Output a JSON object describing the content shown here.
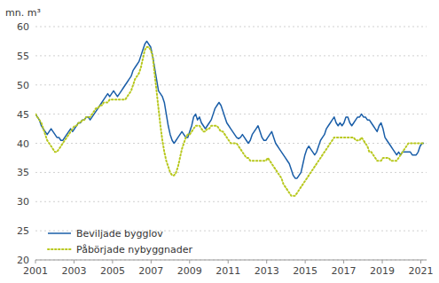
{
  "chart_data": {
    "type": "line",
    "ylabel": "mn. m³",
    "xlim": [
      2001.0,
      2021.3
    ],
    "ylim": [
      20,
      60
    ],
    "xticks": [
      2001,
      2003,
      2005,
      2007,
      2009,
      2011,
      2013,
      2015,
      2017,
      2019,
      2021
    ],
    "yticks": [
      20,
      25,
      30,
      35,
      40,
      45,
      50,
      55,
      60
    ],
    "grid": true,
    "legend": "lower left",
    "x": [
      2001,
      2001.1013,
      2001.2027,
      2001.304,
      2001.4054,
      2001.5067,
      2001.608,
      2001.7094,
      2001.8107,
      2001.9121,
      2002.0134,
      2002.1147,
      2002.2161,
      2002.3174,
      2002.4188,
      2002.5201,
      2002.6214,
      2002.7228,
      2002.8241,
      2002.9255,
      2003.0268,
      2003.1281,
      2003.2295,
      2003.3308,
      2003.4322,
      2003.5335,
      2003.6348,
      2003.7362,
      2003.8375,
      2003.9389,
      2004.0402,
      2004.1415,
      2004.2429,
      2004.3442,
      2004.4456,
      2004.5469,
      2004.6482,
      2004.7496,
      2004.8509,
      2004.9523,
      2005.0536,
      2005.1549,
      2005.2563,
      2005.3576,
      2005.459,
      2005.5603,
      2005.6616,
      2005.763,
      2005.8643,
      2005.9657,
      2006.067,
      2006.1683,
      2006.2697,
      2006.371,
      2006.4724,
      2006.5737,
      2006.675,
      2006.7764,
      2006.8777,
      2006.9791,
      2007.0804,
      2007.1817,
      2007.2831,
      2007.3844,
      2007.4858,
      2007.5871,
      2007.6884,
      2007.7898,
      2007.8911,
      2007.9925,
      2008.0938,
      2008.1951,
      2008.2965,
      2008.3978,
      2008.4992,
      2008.6005,
      2008.7018,
      2008.8032,
      2008.9045,
      2009.0059,
      2009.1072,
      2009.2085,
      2009.3099,
      2009.4112,
      2009.5126,
      2009.6139,
      2009.7152,
      2009.8166,
      2009.9179,
      2010.0193,
      2010.1206,
      2010.2219,
      2010.3233,
      2010.4246,
      2010.526,
      2010.6273,
      2010.7286,
      2010.83,
      2010.9313,
      2011.0327,
      2011.134,
      2011.2353,
      2011.3367,
      2011.438,
      2011.5394,
      2011.6407,
      2011.742,
      2011.8434,
      2011.9447,
      2012.0461,
      2012.1474,
      2012.2487,
      2012.3501,
      2012.4514,
      2012.5528,
      2012.6541,
      2012.7554,
      2012.8568,
      2012.9581,
      2013.0595,
      2013.1608,
      2013.2621,
      2013.3635,
      2013.4648,
      2013.5662,
      2013.6675,
      2013.7688,
      2013.8702,
      2013.9715,
      2014.0729,
      2014.1742,
      2014.2755,
      2014.3769,
      2014.4782,
      2014.5796,
      2014.6809,
      2014.7822,
      2014.8836,
      2014.9849,
      2015.0863,
      2015.1876,
      2015.2889,
      2015.3903,
      2015.4916,
      2015.593,
      2015.6943,
      2015.7956,
      2015.897,
      2015.9983,
      2016.0997,
      2016.201,
      2016.3023,
      2016.4037,
      2016.505,
      2016.6064,
      2016.7077,
      2016.809,
      2016.9104,
      2017.0117,
      2017.1131,
      2017.2144,
      2017.3157,
      2017.4171,
      2017.5184,
      2017.6198,
      2017.7211,
      2017.8224,
      2017.9238,
      2018.0251,
      2018.1265,
      2018.2278,
      2018.3291,
      2018.4305,
      2018.5318,
      2018.6332,
      2018.7345,
      2018.8358,
      2018.9372,
      2019.0385,
      2019.1399,
      2019.2412,
      2019.3425,
      2019.4439,
      2019.5452,
      2019.6466,
      2019.7479,
      2019.8492,
      2019.9506,
      2020.0519,
      2020.1533,
      2020.2546,
      2020.3559,
      2020.4573,
      2020.5586,
      2020.66,
      2020.7613,
      2020.8626,
      2020.964,
      2021.0653,
      2021.1667
    ],
    "series": [
      {
        "name": "Beviljade bygglov",
        "color": "#1a5ea8",
        "line_style": "solid",
        "values": [
          45.0,
          44.5,
          44.0,
          43.0,
          42.5,
          42.0,
          41.5,
          42.0,
          42.5,
          42.0,
          41.5,
          41.0,
          41.0,
          40.5,
          40.5,
          41.0,
          41.5,
          42.0,
          42.5,
          42.0,
          42.5,
          43.0,
          43.5,
          43.5,
          44.0,
          44.0,
          44.5,
          44.5,
          44.0,
          44.5,
          45.0,
          45.5,
          46.0,
          46.5,
          47.0,
          47.5,
          48.0,
          48.5,
          48.0,
          48.5,
          49.0,
          48.5,
          48.0,
          48.5,
          49.0,
          49.5,
          50.0,
          50.5,
          51.0,
          51.5,
          52.5,
          53.0,
          53.5,
          54.0,
          55.0,
          56.0,
          57.0,
          57.5,
          57.0,
          56.5,
          55.0,
          53.0,
          51.0,
          49.0,
          48.5,
          48.0,
          47.0,
          45.0,
          43.0,
          41.5,
          40.5,
          40.0,
          40.5,
          41.0,
          41.5,
          42.0,
          41.5,
          41.0,
          41.0,
          42.0,
          43.0,
          44.5,
          45.0,
          44.0,
          44.5,
          43.5,
          43.0,
          42.5,
          43.0,
          43.5,
          44.0,
          45.0,
          46.0,
          46.5,
          47.0,
          46.5,
          45.5,
          44.5,
          43.5,
          43.0,
          42.5,
          42.0,
          41.5,
          41.0,
          40.8,
          41.0,
          41.5,
          41.0,
          40.5,
          40.0,
          40.5,
          41.5,
          42.0,
          42.5,
          43.0,
          42.0,
          41.0,
          40.5,
          40.5,
          41.0,
          41.5,
          42.0,
          41.0,
          40.0,
          39.5,
          39.0,
          38.5,
          38.0,
          37.5,
          37.0,
          36.5,
          35.5,
          34.5,
          34.0,
          34.0,
          34.5,
          35.0,
          36.5,
          38.0,
          39.0,
          39.5,
          39.0,
          38.5,
          38.0,
          38.5,
          39.5,
          40.5,
          41.0,
          41.5,
          42.5,
          43.0,
          43.5,
          44.0,
          44.5,
          43.5,
          43.0,
          43.5,
          43.0,
          43.5,
          44.5,
          44.5,
          43.5,
          43.0,
          43.5,
          44.0,
          44.5,
          44.5,
          45.0,
          44.5,
          44.5,
          44.0,
          44.0,
          43.5,
          43.0,
          42.5,
          42.0,
          43.0,
          43.5,
          42.5,
          41.0,
          40.5,
          40.0,
          39.5,
          39.0,
          38.5,
          38.0,
          38.5,
          38.0,
          38.5,
          38.5,
          38.5,
          38.5,
          38.5,
          38.0,
          38.0,
          38.0,
          38.5,
          39.5,
          40.0,
          40.0
        ]
      },
      {
        "name": "Påbörjade nybyggnader",
        "color": "#b8c81e",
        "line_style": "dotted",
        "values": [
          45.0,
          44.5,
          44.0,
          43.5,
          42.5,
          41.5,
          40.5,
          40.0,
          39.5,
          39.0,
          38.5,
          38.5,
          39.0,
          39.5,
          40.0,
          40.5,
          41.0,
          41.5,
          42.0,
          42.5,
          43.0,
          43.0,
          43.5,
          43.5,
          44.0,
          44.0,
          44.5,
          44.5,
          44.5,
          45.0,
          45.5,
          46.0,
          46.0,
          46.5,
          46.5,
          47.0,
          47.0,
          47.0,
          47.5,
          47.5,
          47.5,
          47.5,
          47.5,
          47.5,
          47.5,
          47.5,
          47.5,
          48.0,
          48.5,
          49.0,
          50.0,
          51.0,
          51.5,
          52.0,
          53.0,
          54.5,
          56.0,
          56.5,
          56.5,
          56.0,
          55.0,
          52.0,
          49.0,
          46.0,
          43.0,
          40.5,
          38.5,
          37.0,
          36.0,
          35.0,
          34.5,
          34.5,
          35.0,
          36.0,
          37.5,
          39.0,
          40.0,
          41.0,
          41.5,
          41.5,
          42.0,
          42.5,
          43.0,
          43.0,
          43.0,
          42.5,
          42.0,
          42.0,
          42.5,
          42.5,
          43.0,
          43.0,
          43.0,
          43.0,
          42.5,
          42.0,
          42.0,
          41.5,
          41.0,
          40.5,
          40.0,
          40.0,
          40.0,
          40.0,
          39.5,
          39.0,
          38.5,
          38.0,
          37.5,
          37.5,
          37.0,
          37.0,
          37.0,
          37.0,
          37.0,
          37.0,
          37.0,
          37.0,
          37.0,
          37.5,
          37.0,
          36.5,
          36.0,
          35.5,
          35.0,
          34.5,
          34.0,
          33.0,
          32.5,
          32.0,
          31.5,
          31.0,
          31.0,
          31.0,
          31.5,
          32.0,
          32.5,
          33.0,
          33.5,
          34.0,
          34.5,
          35.0,
          35.5,
          36.0,
          36.5,
          37.0,
          37.5,
          38.0,
          38.5,
          39.0,
          39.5,
          40.0,
          40.5,
          41.0,
          41.0,
          41.0,
          41.0,
          41.0,
          41.0,
          41.0,
          41.0,
          41.0,
          41.0,
          41.0,
          40.5,
          40.5,
          40.5,
          41.0,
          40.5,
          40.0,
          39.5,
          38.5,
          38.5,
          38.0,
          37.5,
          37.0,
          37.0,
          37.0,
          37.5,
          37.5,
          37.5,
          37.5,
          37.0,
          37.0,
          37.0,
          37.0,
          37.5,
          38.0,
          38.5,
          39.0,
          39.5,
          40.0,
          40.0,
          40.0,
          40.0,
          40.0,
          40.0,
          40.0,
          40.0,
          40.0
        ]
      }
    ]
  }
}
